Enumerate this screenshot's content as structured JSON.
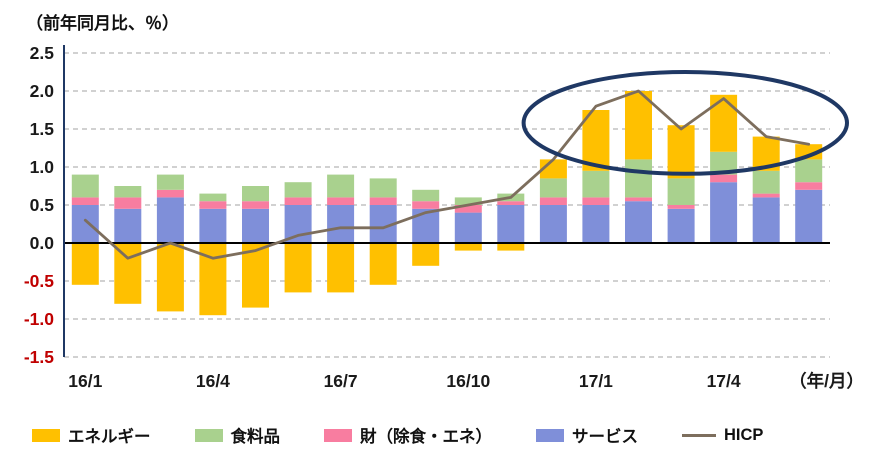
{
  "chart_data": {
    "type": "bar",
    "subtype": "stacked-bars-with-line-overlay",
    "title": "（前年同月比、％）",
    "x_unit_label": "（年/月）",
    "x": [
      "16/1",
      "16/2",
      "16/3",
      "16/4",
      "16/5",
      "16/6",
      "16/7",
      "16/8",
      "16/9",
      "16/10",
      "16/11",
      "16/12",
      "17/1",
      "17/2",
      "17/3",
      "17/4",
      "17/5",
      "17/6"
    ],
    "x_ticks": [
      {
        "index": 0,
        "label": "16/1"
      },
      {
        "index": 3,
        "label": "16/4"
      },
      {
        "index": 6,
        "label": "16/7"
      },
      {
        "index": 9,
        "label": "16/10"
      },
      {
        "index": 12,
        "label": "17/1"
      },
      {
        "index": 15,
        "label": "17/4"
      }
    ],
    "ylim": [
      -1.5,
      2.5
    ],
    "ytick_step": 0.5,
    "negative_tick_color": "#C00000",
    "axis_color": "#1F3864",
    "gridline_style": "dashed",
    "legend_position": "bottom",
    "stack_order": [
      3,
      2,
      1,
      0
    ],
    "series": [
      {
        "key": "energy",
        "name": "エネルギー",
        "type": "bar",
        "color": "#FFC000",
        "values": [
          -0.55,
          -0.8,
          -0.9,
          -0.95,
          -0.85,
          -0.65,
          -0.65,
          -0.55,
          -0.3,
          -0.1,
          -0.1,
          0.25,
          0.8,
          0.9,
          0.7,
          0.75,
          0.45,
          0.2
        ]
      },
      {
        "key": "food",
        "name": "食料品",
        "type": "bar",
        "color": "#A9D18E",
        "values": [
          0.3,
          0.15,
          0.2,
          0.1,
          0.2,
          0.2,
          0.3,
          0.25,
          0.15,
          0.1,
          0.1,
          0.25,
          0.35,
          0.5,
          0.35,
          0.3,
          0.3,
          0.3
        ]
      },
      {
        "key": "goods",
        "name": "財（除食・エネ）",
        "type": "bar",
        "color": "#F87DA0",
        "values": [
          0.1,
          0.15,
          0.1,
          0.1,
          0.1,
          0.1,
          0.1,
          0.1,
          0.1,
          0.1,
          0.05,
          0.1,
          0.1,
          0.05,
          0.05,
          0.1,
          0.05,
          0.1
        ]
      },
      {
        "key": "services",
        "name": "サービス",
        "type": "bar",
        "color": "#7F8FD9",
        "values": [
          0.5,
          0.45,
          0.6,
          0.45,
          0.45,
          0.5,
          0.5,
          0.5,
          0.45,
          0.4,
          0.5,
          0.5,
          0.5,
          0.55,
          0.45,
          0.8,
          0.6,
          0.7
        ]
      },
      {
        "key": "hicp",
        "name": "HICP",
        "type": "line",
        "color": "#7D6E5D",
        "values": [
          0.3,
          -0.2,
          0.0,
          -0.2,
          -0.1,
          0.1,
          0.2,
          0.2,
          0.4,
          0.5,
          0.6,
          1.1,
          1.8,
          2.0,
          1.5,
          1.9,
          1.4,
          1.3
        ]
      }
    ],
    "annotation": {
      "shape": "ellipse",
      "color": "#1F3864",
      "stroke_width": 4,
      "center_month_index": 14.1,
      "center_value": 1.58,
      "radius_months": 3.8,
      "radius_value": 0.67
    }
  }
}
